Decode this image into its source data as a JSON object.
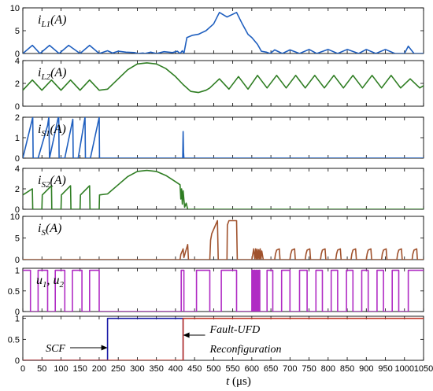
{
  "chart_data": {
    "type": "line",
    "x_range": [
      0,
      1050
    ],
    "x_ticks": [
      0,
      50,
      100,
      150,
      200,
      250,
      300,
      350,
      400,
      450,
      500,
      550,
      600,
      650,
      700,
      750,
      800,
      850,
      900,
      950,
      1000,
      1050
    ],
    "x_tick_labels": [
      "0",
      "50",
      "100",
      "150",
      "200",
      "250",
      "300",
      "350",
      "400",
      "450",
      "500",
      "550",
      "600",
      "650",
      "700",
      "750",
      "800",
      "850",
      "900",
      "950",
      "1000",
      "1050"
    ],
    "xlabel_parts": [
      {
        "text": "t ",
        "style": "normal"
      },
      {
        "text": "(μs)",
        "style": "normal"
      }
    ],
    "colors": {
      "blue": "#1f5fbf",
      "green": "#2e7d22",
      "brown": "#a0522d",
      "magenta": "#b02cc4",
      "navy": "#1a1aa6",
      "red": "#c0392b"
    },
    "panels": [
      {
        "label_main": "i",
        "label_sub": "L1",
        "label_tail": "(A)",
        "ylim": [
          0,
          10
        ],
        "y_ticks": [
          0,
          5,
          10
        ],
        "y_tick_labels": [
          "0",
          "5",
          "10"
        ],
        "series": [
          {
            "color": "blue",
            "x": [
              0,
              25,
              45,
              70,
              95,
              120,
              150,
              175,
              200,
              222,
              235,
              250,
              270,
              292,
              302,
              315,
              320,
              335,
              350,
              370,
              392,
              405,
              412,
              418,
              422,
              430,
              445,
              460,
              480,
              500,
              515,
              535,
              560,
              575,
              590,
              600,
              615,
              625,
              638,
              648,
              660,
              680,
              700,
              725,
              750,
              770,
              800,
              825,
              850,
              880,
              900,
              925,
              950,
              975,
              1000,
              1010,
              1025,
              1050
            ],
            "y": [
              0,
              1.8,
              0,
              1.8,
              0,
              1.8,
              0,
              1.8,
              0,
              0.6,
              0.1,
              0.5,
              0.3,
              0.2,
              0,
              0.1,
              0,
              0.3,
              0,
              0.4,
              0.2,
              0.5,
              0,
              0.6,
              0,
              3.5,
              4.0,
              4.2,
              5.0,
              6.5,
              9.0,
              8.0,
              9.0,
              6.5,
              4.2,
              3.5,
              2.0,
              0.5,
              0.3,
              0,
              0.8,
              0,
              0.8,
              0,
              0.9,
              0,
              0.9,
              0,
              0.9,
              0,
              0.9,
              0,
              0.9,
              0,
              0,
              1.6,
              0,
              0
            ]
          }
        ]
      },
      {
        "label_main": "i",
        "label_sub": "L2",
        "label_tail": "(A)",
        "ylim": [
          0,
          4
        ],
        "y_ticks": [
          0,
          2,
          4
        ],
        "y_tick_labels": [
          "0",
          "2",
          "4"
        ],
        "series": [
          {
            "color": "green",
            "x": [
              0,
              25,
              50,
              75,
              100,
              125,
              150,
              175,
              200,
              222,
              250,
              275,
              300,
              325,
              350,
              375,
              400,
              420,
              440,
              460,
              480,
              490,
              515,
              540,
              565,
              590,
              615,
              640,
              665,
              690,
              715,
              740,
              765,
              790,
              815,
              840,
              865,
              890,
              915,
              940,
              965,
              990,
              1015,
              1040,
              1050
            ],
            "y": [
              1.4,
              2.3,
              1.4,
              2.3,
              1.4,
              2.3,
              1.4,
              2.3,
              1.4,
              1.5,
              2.4,
              3.2,
              3.7,
              3.8,
              3.7,
              3.3,
              2.6,
              1.9,
              1.3,
              1.2,
              1.4,
              1.6,
              2.4,
              1.5,
              2.6,
              1.5,
              2.7,
              1.6,
              2.7,
              1.6,
              2.7,
              1.6,
              2.7,
              1.6,
              2.7,
              1.6,
              2.7,
              1.6,
              2.7,
              1.6,
              2.7,
              1.6,
              2.4,
              1.6,
              1.8
            ]
          }
        ]
      },
      {
        "label_main": "i",
        "label_sub": "S1",
        "label_tail": "(A)",
        "ylim": [
          0,
          2
        ],
        "y_ticks": [
          0,
          1,
          2
        ],
        "y_tick_labels": [
          "0",
          "1",
          "2"
        ],
        "series": [
          {
            "color": "blue",
            "x": [
              0,
              26,
              27,
              40,
              65,
              68,
              70,
              94,
              95,
              110,
              131,
              132,
              145,
              163,
              164,
              177,
              200,
              201,
              222,
              419,
              420,
              421,
              422,
              1050
            ],
            "y": [
              0,
              2.0,
              0,
              0,
              1.6,
              2.0,
              0,
              2.1,
              0,
              0,
              1.9,
              0,
              0,
              2.0,
              0,
              0,
              2.0,
              0,
              0,
              0,
              1.3,
              0.3,
              0,
              0
            ]
          }
        ]
      },
      {
        "label_main": "i",
        "label_sub": "S2",
        "label_tail": "(A)",
        "ylim": [
          0,
          4
        ],
        "y_ticks": [
          0,
          2,
          4
        ],
        "y_tick_labels": [
          "0",
          "2",
          "4"
        ],
        "series": [
          {
            "color": "green",
            "x": [
              0,
              25,
              26,
              50,
              51,
              75,
              76,
              100,
              101,
              125,
              126,
              150,
              151,
              175,
              176,
              200,
              201,
              222,
              250,
              275,
              300,
              325,
              350,
              375,
              400,
              412,
              414,
              416,
              418,
              420,
              424,
              428,
              432,
              1050
            ],
            "y": [
              1.4,
              2.0,
              0,
              0,
              1.4,
              2.3,
              0,
              0,
              1.4,
              2.3,
              0,
              0,
              1.4,
              2.3,
              0,
              0,
              1.4,
              1.5,
              2.4,
              3.2,
              3.7,
              3.8,
              3.7,
              3.3,
              2.7,
              2.4,
              1.0,
              2.0,
              0.5,
              1.8,
              0.2,
              0.6,
              0,
              0
            ]
          }
        ]
      },
      {
        "label_main": "i",
        "label_sub": "S",
        "label_tail": "(A)",
        "ylim": [
          0,
          10
        ],
        "y_ticks": [
          0,
          5,
          10
        ],
        "y_tick_labels": [
          "0",
          "5",
          "10"
        ],
        "series": [
          {
            "color": "brown",
            "x": [
              0,
              230,
              400,
              412,
              414,
              420,
              422,
              432,
              434,
              440,
              490,
              492,
              495,
              510,
              512,
              535,
              536,
              540,
              560,
              562,
              600,
              605,
              608,
              610,
              612,
              614,
              616,
              618,
              620,
              622,
              624,
              626,
              630,
              632,
              660,
              662,
              665,
              672,
              674,
              700,
              702,
              705,
              712,
              714,
              740,
              742,
              745,
              752,
              754,
              780,
              782,
              785,
              792,
              794,
              820,
              822,
              825,
              832,
              834,
              860,
              862,
              865,
              872,
              874,
              900,
              902,
              905,
              912,
              914,
              940,
              942,
              945,
              952,
              954,
              980,
              982,
              985,
              992,
              994,
              1020,
              1022,
              1025,
              1032,
              1034,
              1050
            ],
            "y": [
              0,
              0,
              0,
              0,
              1.2,
              2.5,
              0.5,
              3.5,
              0,
              0,
              0,
              4.5,
              6.0,
              9.0,
              0,
              0,
              8.0,
              9.0,
              9.0,
              0,
              0,
              2.5,
              0,
              2.5,
              0,
              2.4,
              0,
              2.3,
              0,
              2.5,
              0,
              2.0,
              0,
              0,
              0,
              1.3,
              2.2,
              2.5,
              0,
              0,
              1.3,
              2.2,
              2.5,
              0,
              0,
              1.3,
              2.2,
              2.5,
              0,
              0,
              1.3,
              2.2,
              2.5,
              0,
              0,
              1.3,
              2.2,
              2.5,
              0,
              0,
              1.3,
              2.2,
              2.5,
              0,
              0,
              1.3,
              2.2,
              2.5,
              0,
              0,
              1.3,
              2.2,
              2.5,
              0,
              0,
              1.3,
              2.2,
              2.5,
              0,
              0,
              1.3,
              2.2,
              2.5,
              0,
              0
            ]
          }
        ]
      },
      {
        "label_main": "u",
        "label_sub": "1",
        "label_tail": ", u",
        "label_sub2": "2",
        "ylim": [
          0,
          1.05
        ],
        "y_ticks": [
          0,
          0.5,
          1
        ],
        "y_tick_labels": [
          "0",
          "0.5",
          "1"
        ],
        "series": [
          {
            "color": "magenta",
            "x": [
              0,
              0,
              20,
              20,
              40,
              40,
              65,
              65,
              85,
              85,
              110,
              110,
              130,
              130,
              155,
              155,
              175,
              175,
              200,
              200,
              222,
              222,
              415,
              415,
              422,
              422,
              455,
              455,
              490,
              490,
              520,
              520,
              560,
              560,
              600,
              600,
              603,
              603,
              606,
              606,
              609,
              609,
              612,
              612,
              615,
              615,
              618,
              618,
              621,
              621,
              640,
              640,
              655,
              655,
              678,
              678,
              700,
              700,
              725,
              725,
              745,
              745,
              768,
              768,
              785,
              785,
              808,
              808,
              825,
              825,
              848,
              848,
              865,
              865,
              888,
              888,
              905,
              905,
              928,
              928,
              945,
              945,
              968,
              968,
              985,
              985,
              1010,
              1010,
              1050
            ],
            "y": [
              1,
              1,
              1,
              0,
              0,
              1,
              1,
              0,
              0,
              1,
              1,
              0,
              0,
              1,
              1,
              0,
              0,
              1,
              1,
              0,
              0,
              0,
              0,
              1,
              1,
              0,
              0,
              1,
              1,
              0,
              0,
              1,
              1,
              0,
              0,
              1,
              1,
              0,
              0,
              1,
              1,
              0,
              0,
              1,
              1,
              0,
              0,
              1,
              1,
              0,
              0,
              1,
              1,
              0,
              0,
              1,
              1,
              0,
              0,
              1,
              1,
              0,
              0,
              1,
              1,
              0,
              0,
              1,
              1,
              0,
              0,
              1,
              1,
              0,
              0,
              1,
              1,
              0,
              0,
              1,
              1,
              0,
              0,
              1,
              1,
              0,
              0,
              1,
              1
            ]
          }
        ]
      },
      {
        "label_main": "",
        "ylim": [
          0,
          1.05
        ],
        "y_ticks": [
          0,
          0.5,
          1
        ],
        "y_tick_labels": [
          "0",
          "0.5",
          "1"
        ],
        "series": [
          {
            "color": "navy",
            "x": [
              0,
              222,
              222,
              420,
              420
            ],
            "y": [
              0,
              0,
              1,
              1,
              0
            ]
          },
          {
            "color": "red",
            "x": [
              0,
              420,
              420,
              1050
            ],
            "y": [
              0,
              0,
              1,
              1
            ]
          }
        ],
        "annotations": [
          {
            "text": "SCF",
            "arrow_to_x": 222,
            "arrow_to_y": 0.3,
            "text_x": 60,
            "text_y": 0.3,
            "anchor": "start"
          },
          {
            "text": "Fault-UFD",
            "arrow_to_x": 420,
            "arrow_to_y": 0.6,
            "text_x": 490,
            "text_y": 0.75,
            "anchor": "start"
          },
          {
            "text": "Reconfiguration",
            "text_x": 490,
            "text_y": 0.28,
            "anchor": "start"
          }
        ]
      }
    ]
  }
}
